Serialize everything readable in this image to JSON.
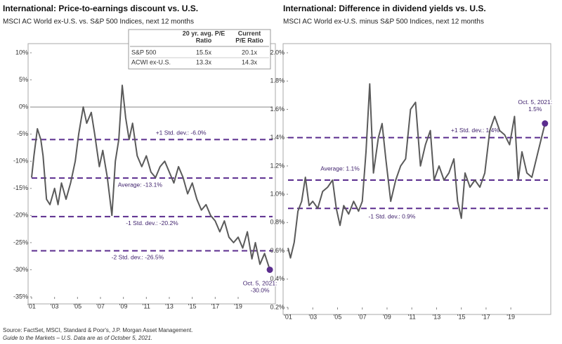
{
  "chart_data": [
    {
      "type": "line",
      "title": "International: Price-to-earnings discount vs. U.S.",
      "subtitle": "MSCI AC World ex-U.S. vs. S&P 500 Indices, next 12 months",
      "xlim": [
        2001,
        2022
      ],
      "ylim": [
        -35,
        10
      ],
      "xticks": [
        {
          "value": 2001,
          "label": "'01"
        },
        {
          "value": 2003,
          "label": "'03"
        },
        {
          "value": 2005,
          "label": "'05"
        },
        {
          "value": 2007,
          "label": "'07"
        },
        {
          "value": 2009,
          "label": "'09"
        },
        {
          "value": 2011,
          "label": "'11"
        },
        {
          "value": 2013,
          "label": "'13"
        },
        {
          "value": 2015,
          "label": "'15"
        },
        {
          "value": 2017,
          "label": "'17"
        },
        {
          "value": 2019,
          "label": "'19"
        }
      ],
      "yticks": [
        {
          "value": -35,
          "label": "-35%"
        },
        {
          "value": -30,
          "label": "-30%"
        },
        {
          "value": -25,
          "label": "-25%"
        },
        {
          "value": -20,
          "label": "-20%"
        },
        {
          "value": -15,
          "label": "-15%"
        },
        {
          "value": -10,
          "label": "-10%"
        },
        {
          "value": -5,
          "label": "-5%"
        },
        {
          "value": 0,
          "label": "0%"
        },
        {
          "value": 5,
          "label": "5%"
        },
        {
          "value": 10,
          "label": "10%"
        }
      ],
      "baseline": true,
      "color": "#5a5a5a",
      "reference_color": "#5b2d8e",
      "x": [
        2001.0,
        2001.2,
        2001.5,
        2001.8,
        2002.0,
        2002.3,
        2002.6,
        2003.0,
        2003.3,
        2003.6,
        2004.0,
        2004.4,
        2004.8,
        2005.1,
        2005.5,
        2005.8,
        2006.2,
        2006.5,
        2006.9,
        2007.2,
        2007.6,
        2008.0,
        2008.3,
        2008.6,
        2008.9,
        2009.2,
        2009.5,
        2009.8,
        2010.2,
        2010.6,
        2011.0,
        2011.4,
        2011.8,
        2012.2,
        2012.6,
        2013.0,
        2013.4,
        2013.8,
        2014.2,
        2014.6,
        2015.0,
        2015.4,
        2015.8,
        2016.2,
        2016.6,
        2017.0,
        2017.4,
        2017.8,
        2018.2,
        2018.6,
        2019.0,
        2019.4,
        2019.8,
        2020.2,
        2020.5,
        2020.9,
        2021.3,
        2021.76
      ],
      "values": [
        -13,
        -9,
        -4,
        -6,
        -9,
        -17,
        -18,
        -15,
        -18,
        -14,
        -17,
        -14,
        -10,
        -5,
        0,
        -3,
        -1,
        -5,
        -11,
        -8,
        -13,
        -20,
        -10,
        -6,
        4,
        -2,
        -6,
        -3,
        -9,
        -11,
        -9,
        -12,
        -13,
        -11,
        -10,
        -12,
        -14,
        -11,
        -13,
        -16,
        -14,
        -17,
        -19,
        -18,
        -20,
        -21,
        -23,
        -21,
        -24,
        -25,
        -24,
        -26,
        -23,
        -28,
        -25,
        -29,
        -27,
        -30
      ],
      "reference_lines": [
        {
          "value": -6.0,
          "label": "+1 Std. dev.: -6.0%"
        },
        {
          "value": -13.1,
          "label": "Average: -13.1%"
        },
        {
          "value": -20.2,
          "label": "-1 Std. dev.: -20.2%"
        },
        {
          "value": -26.5,
          "label": "-2 Std. dev.: -26.5%"
        }
      ],
      "annotation": [
        "Oct. 5, 2021:",
        "-30.0%"
      ],
      "table": {
        "header": [
          [
            "20 yr. avg. P/E",
            "Ratio"
          ],
          [
            "Current",
            "P/E Ratio"
          ]
        ],
        "rows": [
          [
            "S&P 500",
            "15.5x",
            "20.1x"
          ],
          [
            "ACWI ex-U.S.",
            "13.3x",
            "14.3x"
          ]
        ]
      }
    },
    {
      "type": "line",
      "title": "International: Difference in dividend yields vs. U.S.",
      "subtitle": "MSCI AC World ex-U.S. minus S&P 500 Indices, next 12 months",
      "xlim": [
        2001,
        2022
      ],
      "ylim": [
        0.2,
        2.0
      ],
      "xticks": [
        {
          "value": 2001,
          "label": "'01"
        },
        {
          "value": 2003,
          "label": "'03"
        },
        {
          "value": 2005,
          "label": "'05"
        },
        {
          "value": 2007,
          "label": "'07"
        },
        {
          "value": 2009,
          "label": "'09"
        },
        {
          "value": 2011,
          "label": "'11"
        },
        {
          "value": 2013,
          "label": "'13"
        },
        {
          "value": 2015,
          "label": "'15"
        },
        {
          "value": 2017,
          "label": "'17"
        },
        {
          "value": 2019,
          "label": "'19"
        }
      ],
      "yticks": [
        {
          "value": 0.2,
          "label": "0.2%"
        },
        {
          "value": 0.4,
          "label": "0.4%"
        },
        {
          "value": 0.6,
          "label": "0.6%"
        },
        {
          "value": 0.8,
          "label": "0.8%"
        },
        {
          "value": 1.0,
          "label": "1.0%"
        },
        {
          "value": 1.2,
          "label": "1.2%"
        },
        {
          "value": 1.4,
          "label": "1.4%"
        },
        {
          "value": 1.6,
          "label": "1.6%"
        },
        {
          "value": 1.8,
          "label": "1.8%"
        },
        {
          "value": 2.0,
          "label": "2.0%"
        }
      ],
      "baseline": false,
      "color": "#5a5a5a",
      "reference_color": "#5b2d8e",
      "x": [
        2001.0,
        2001.2,
        2001.5,
        2001.8,
        2002.1,
        2002.4,
        2002.7,
        2003.0,
        2003.4,
        2003.8,
        2004.2,
        2004.6,
        2004.9,
        2005.2,
        2005.5,
        2005.9,
        2006.3,
        2006.7,
        2007.0,
        2007.3,
        2007.6,
        2007.9,
        2008.3,
        2008.6,
        2008.9,
        2009.3,
        2009.7,
        2010.1,
        2010.5,
        2010.9,
        2011.3,
        2011.7,
        2012.1,
        2012.5,
        2012.8,
        2013.2,
        2013.6,
        2014.0,
        2014.4,
        2014.7,
        2015.0,
        2015.3,
        2015.7,
        2016.1,
        2016.5,
        2016.9,
        2017.3,
        2017.7,
        2018.1,
        2018.5,
        2018.9,
        2019.3,
        2019.6,
        2019.9,
        2020.3,
        2020.7,
        2021.2,
        2021.76
      ],
      "values": [
        0.62,
        0.55,
        0.66,
        0.88,
        0.95,
        1.12,
        0.92,
        0.95,
        0.9,
        1.02,
        1.05,
        1.1,
        0.9,
        0.78,
        0.92,
        0.86,
        0.95,
        0.88,
        0.95,
        1.3,
        1.78,
        1.15,
        1.4,
        1.5,
        1.25,
        0.95,
        1.1,
        1.2,
        1.25,
        1.6,
        1.65,
        1.2,
        1.35,
        1.45,
        1.1,
        1.2,
        1.1,
        1.15,
        1.25,
        0.95,
        0.83,
        1.15,
        1.05,
        1.1,
        1.05,
        1.15,
        1.45,
        1.55,
        1.45,
        1.42,
        1.35,
        1.55,
        1.1,
        1.3,
        1.15,
        1.12,
        1.3,
        1.5
      ],
      "reference_lines": [
        {
          "value": 1.4,
          "label": "+1 Std. dev.: 1.4%"
        },
        {
          "value": 1.1,
          "label": "Average: 1.1%"
        },
        {
          "value": 0.9,
          "label": "-1 Std. dev.: 0.9%"
        }
      ],
      "annotation": [
        "Oct. 5, 2021:",
        "1.5%"
      ]
    }
  ],
  "footer": {
    "source": "Source: FactSet, MSCI, Standard & Poor's, J.P. Morgan Asset Management.",
    "note": "Guide to the Markets – U.S. Data are as of October 5, 2021."
  }
}
